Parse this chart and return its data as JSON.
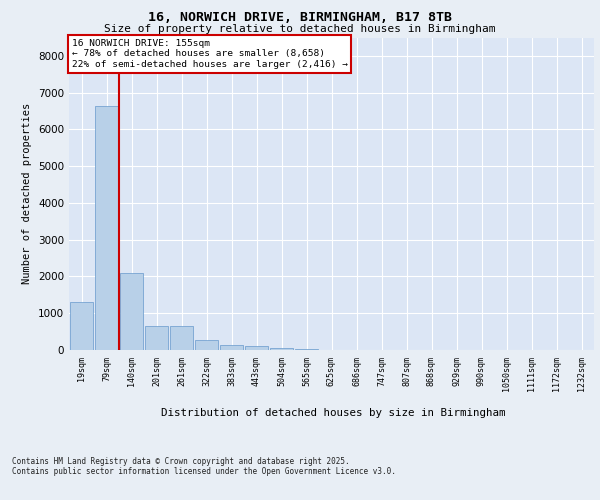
{
  "title1": "16, NORWICH DRIVE, BIRMINGHAM, B17 8TB",
  "title2": "Size of property relative to detached houses in Birmingham",
  "xlabel": "Distribution of detached houses by size in Birmingham",
  "ylabel": "Number of detached properties",
  "footnote1": "Contains HM Land Registry data © Crown copyright and database right 2025.",
  "footnote2": "Contains public sector information licensed under the Open Government Licence v3.0.",
  "annotation_title": "16 NORWICH DRIVE: 155sqm",
  "annotation_line1": "← 78% of detached houses are smaller (8,658)",
  "annotation_line2": "22% of semi-detached houses are larger (2,416) →",
  "bin_labels": [
    "19sqm",
    "79sqm",
    "140sqm",
    "201sqm",
    "261sqm",
    "322sqm",
    "383sqm",
    "443sqm",
    "504sqm",
    "565sqm",
    "625sqm",
    "686sqm",
    "747sqm",
    "807sqm",
    "868sqm",
    "929sqm",
    "990sqm",
    "1050sqm",
    "1111sqm",
    "1172sqm",
    "1232sqm"
  ],
  "bar_heights": [
    1300,
    6650,
    2100,
    650,
    650,
    270,
    130,
    110,
    65,
    20,
    10,
    5,
    3,
    2,
    1,
    1,
    0,
    0,
    0,
    0,
    0
  ],
  "bar_color": "#b8d0e8",
  "bar_edge_color": "#6699cc",
  "vline_color": "#cc0000",
  "background_color": "#e8eef5",
  "plot_bg_color": "#dce6f5",
  "grid_color": "#ffffff",
  "ylim": [
    0,
    8500
  ],
  "yticks": [
    0,
    1000,
    2000,
    3000,
    4000,
    5000,
    6000,
    7000,
    8000
  ]
}
